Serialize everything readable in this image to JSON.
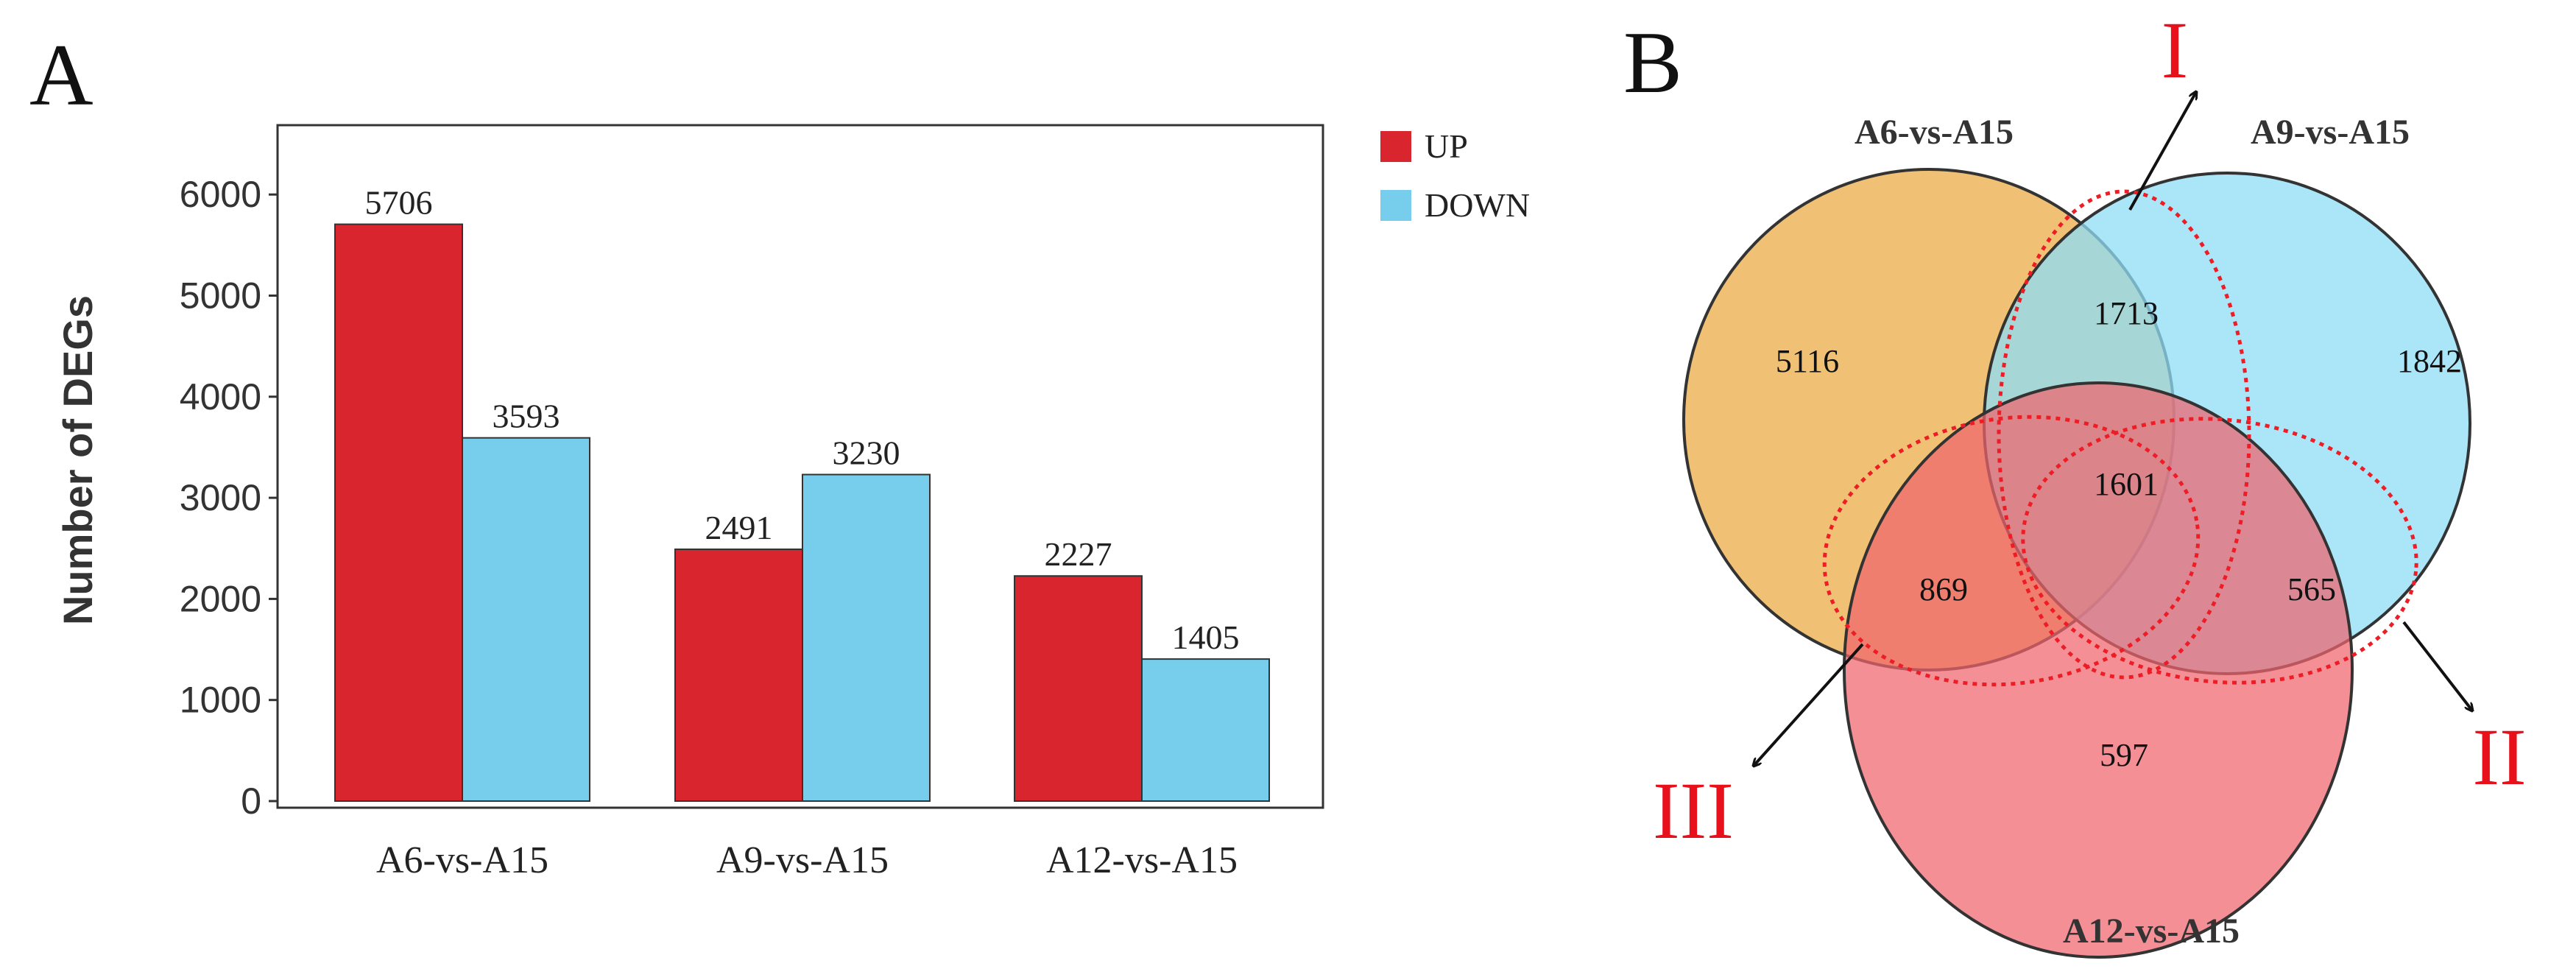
{
  "panels": {
    "a_label": "A",
    "b_label": "B"
  },
  "chart_data": [
    {
      "type": "bar",
      "categories": [
        "A6-vs-A15",
        "A9-vs-A15",
        "A12-vs-A15"
      ],
      "series": [
        {
          "name": "UP",
          "values": [
            5706,
            2491,
            2227
          ],
          "color": "#d9262e"
        },
        {
          "name": "DOWN",
          "values": [
            3593,
            3230,
            1405
          ],
          "color": "#77cdec"
        }
      ],
      "title": "",
      "xlabel": "",
      "ylabel": "Number of DEGs",
      "ylim": [
        0,
        6450
      ],
      "yticks": [
        0,
        1000,
        2000,
        3000,
        4000,
        5000,
        6000
      ],
      "grid": false,
      "legend": "top-right outside"
    },
    {
      "type": "venn",
      "sets": [
        {
          "name": "A6-vs-A15",
          "color": "#f0c174"
        },
        {
          "name": "A9-vs-A15",
          "color": "#8edcf5"
        },
        {
          "name": "A12-vs-A15",
          "color": "#f0646e"
        }
      ],
      "regions": [
        {
          "sets": [
            "A6-vs-A15"
          ],
          "value": 5116
        },
        {
          "sets": [
            "A9-vs-A15"
          ],
          "value": 1842
        },
        {
          "sets": [
            "A12-vs-A15"
          ],
          "value": 597
        },
        {
          "sets": [
            "A6-vs-A15",
            "A9-vs-A15"
          ],
          "value": 1713
        },
        {
          "sets": [
            "A6-vs-A15",
            "A12-vs-A15"
          ],
          "value": 869
        },
        {
          "sets": [
            "A9-vs-A15",
            "A12-vs-A15"
          ],
          "value": 565
        },
        {
          "sets": [
            "A6-vs-A15",
            "A9-vs-A15",
            "A12-vs-A15"
          ],
          "value": 1601
        }
      ],
      "annotations": [
        {
          "label": "I",
          "marks": [
            "A6-vs-A15",
            "A9-vs-A15"
          ]
        },
        {
          "label": "II",
          "marks": [
            "A9-vs-A15",
            "A12-vs-A15"
          ]
        },
        {
          "label": "III",
          "marks": [
            "A6-vs-A15",
            "A12-vs-A15"
          ]
        }
      ],
      "annotation_color": "#e8101a"
    }
  ]
}
